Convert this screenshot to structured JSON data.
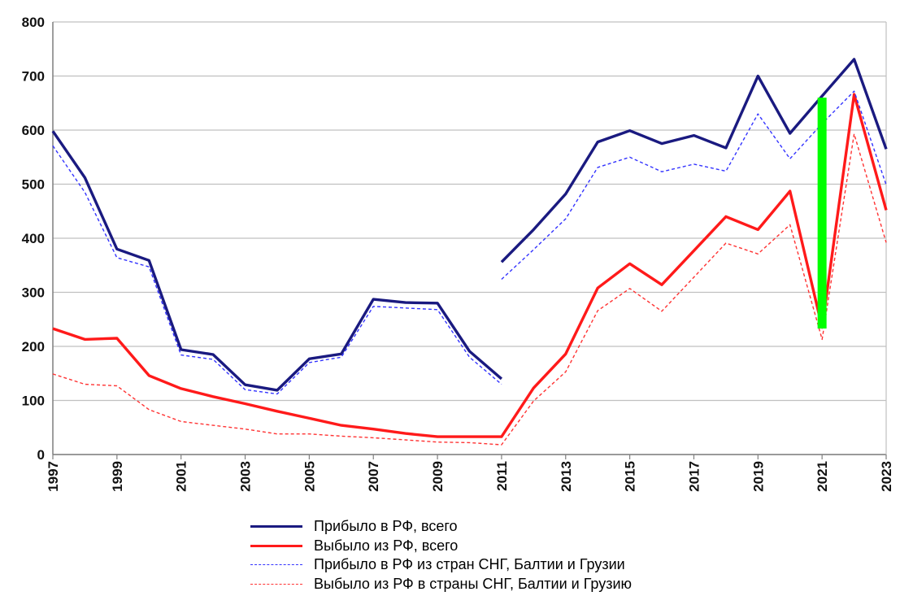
{
  "chart_data": {
    "type": "line",
    "title": "",
    "xlabel": "",
    "ylabel": "",
    "ylim": [
      0,
      800
    ],
    "yticks": [
      0,
      100,
      200,
      300,
      400,
      500,
      600,
      700,
      800
    ],
    "xlim": [
      1997,
      2023
    ],
    "xtick_labels": [
      "1997",
      "1999",
      "2001",
      "2003",
      "2005",
      "2007",
      "2009",
      "2011",
      "2013",
      "2015",
      "2017",
      "2019",
      "2021",
      "2023"
    ],
    "grid": "horizontal",
    "legend_position": "bottom",
    "series": [
      {
        "name": "Прибыло в РФ, всего",
        "color": "#1a1a80",
        "style": "solid-thick",
        "points": [
          [
            1997,
            598
          ],
          [
            1998,
            512
          ],
          [
            1999,
            380
          ],
          [
            2000,
            359
          ],
          [
            2001,
            194
          ],
          [
            2002,
            185
          ],
          [
            2003,
            129
          ],
          [
            2004,
            119
          ],
          [
            2005,
            177
          ],
          [
            2006,
            186
          ],
          [
            2007,
            287
          ],
          [
            2008,
            281
          ],
          [
            2009,
            280
          ],
          [
            2010,
            191
          ],
          [
            2011,
            140
          ],
          [
            2011,
            356
          ],
          [
            2012,
            416
          ],
          [
            2013,
            482
          ],
          [
            2014,
            578
          ],
          [
            2015,
            599
          ],
          [
            2016,
            575
          ],
          [
            2017,
            590
          ],
          [
            2018,
            567
          ],
          [
            2019,
            700
          ],
          [
            2020,
            594
          ],
          [
            2021,
            663
          ],
          [
            2022,
            731
          ],
          [
            2023,
            565
          ]
        ]
      },
      {
        "name": "Выбыло из РФ, всего",
        "color": "#ff1a1a",
        "style": "solid-thick",
        "points": [
          [
            1997,
            233
          ],
          [
            1998,
            213
          ],
          [
            1999,
            215
          ],
          [
            2000,
            146
          ],
          [
            2001,
            122
          ],
          [
            2002,
            107
          ],
          [
            2003,
            94
          ],
          [
            2004,
            80
          ],
          [
            2005,
            67
          ],
          [
            2006,
            54
          ],
          [
            2007,
            47
          ],
          [
            2008,
            39
          ],
          [
            2009,
            33
          ],
          [
            2010,
            33
          ],
          [
            2011,
            33
          ],
          [
            2012,
            123
          ],
          [
            2013,
            186
          ],
          [
            2014,
            308
          ],
          [
            2015,
            353
          ],
          [
            2016,
            314
          ],
          [
            2017,
            377
          ],
          [
            2018,
            440
          ],
          [
            2019,
            416
          ],
          [
            2020,
            487
          ],
          [
            2021,
            235
          ],
          [
            2022,
            666
          ],
          [
            2023,
            452
          ]
        ]
      },
      {
        "name": "Прибыло в РФ из стран СНГ, Балтии и Грузии",
        "color": "#3333ff",
        "style": "dashed",
        "points": [
          [
            1997,
            571
          ],
          [
            1998,
            485
          ],
          [
            1999,
            364
          ],
          [
            2000,
            347
          ],
          [
            2001,
            184
          ],
          [
            2002,
            176
          ],
          [
            2003,
            120
          ],
          [
            2004,
            112
          ],
          [
            2005,
            170
          ],
          [
            2006,
            180
          ],
          [
            2007,
            274
          ],
          [
            2008,
            271
          ],
          [
            2009,
            268
          ],
          [
            2010,
            180
          ],
          [
            2011,
            130
          ],
          [
            2011,
            324
          ],
          [
            2012,
            379
          ],
          [
            2013,
            436
          ],
          [
            2014,
            531
          ],
          [
            2015,
            550
          ],
          [
            2016,
            523
          ],
          [
            2017,
            537
          ],
          [
            2018,
            524
          ],
          [
            2019,
            630
          ],
          [
            2020,
            547
          ],
          [
            2021,
            612
          ],
          [
            2022,
            672
          ],
          [
            2023,
            499
          ]
        ]
      },
      {
        "name": "Выбыло из РФ в страны СНГ, Балтии и Грузию",
        "color": "#ff3333",
        "style": "dashed",
        "points": [
          [
            1997,
            149
          ],
          [
            1998,
            130
          ],
          [
            1999,
            127
          ],
          [
            2000,
            83
          ],
          [
            2001,
            61
          ],
          [
            2002,
            54
          ],
          [
            2003,
            47
          ],
          [
            2004,
            38
          ],
          [
            2005,
            38
          ],
          [
            2006,
            34
          ],
          [
            2007,
            31
          ],
          [
            2008,
            27
          ],
          [
            2009,
            23
          ],
          [
            2010,
            22
          ],
          [
            2011,
            18
          ],
          [
            2012,
            99
          ],
          [
            2013,
            153
          ],
          [
            2014,
            266
          ],
          [
            2015,
            307
          ],
          [
            2016,
            265
          ],
          [
            2017,
            328
          ],
          [
            2018,
            391
          ],
          [
            2019,
            371
          ],
          [
            2020,
            425
          ],
          [
            2021,
            213
          ],
          [
            2022,
            593
          ],
          [
            2023,
            392
          ]
        ]
      }
    ],
    "annotations": [
      {
        "type": "highlight-bar",
        "x": 2021,
        "y_from": 233,
        "y_to": 660,
        "color": "#00ff00"
      }
    ]
  }
}
